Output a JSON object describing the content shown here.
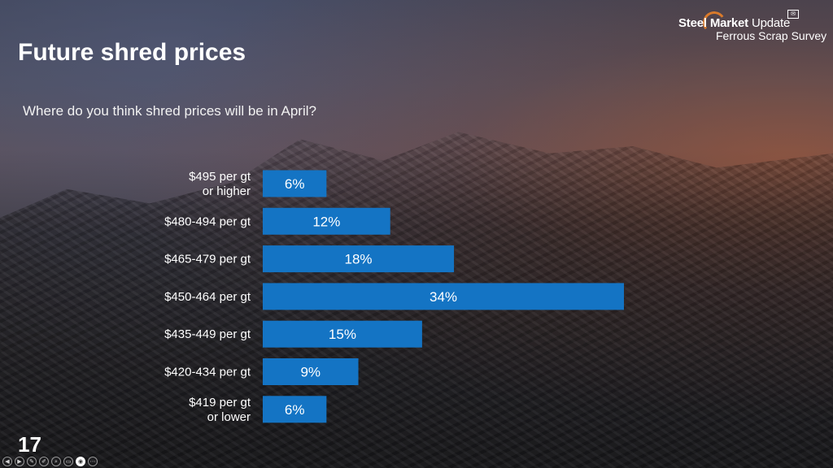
{
  "slide": {
    "title": "Future shred prices",
    "question": "Where do you think shred prices will be in April?",
    "number": "17"
  },
  "logo": {
    "brand_bold": "Steel Market",
    "brand_light": "Update",
    "subtitle": "Ferrous Scrap Survey",
    "badge": "✉"
  },
  "colors": {
    "bar": "#1474c4",
    "accent": "#d97a2b"
  },
  "controls": [
    {
      "name": "prev-icon",
      "glyph": "◀"
    },
    {
      "name": "next-icon",
      "glyph": "▶"
    },
    {
      "name": "pen-icon",
      "glyph": "✎"
    },
    {
      "name": "highlighter-icon",
      "glyph": "✐"
    },
    {
      "name": "zoom-icon",
      "glyph": "⌕"
    },
    {
      "name": "subtitles-icon",
      "glyph": "▭"
    },
    {
      "name": "view-icon",
      "glyph": "◉"
    },
    {
      "name": "more-icon",
      "glyph": "⋯"
    }
  ],
  "chart_data": {
    "type": "bar",
    "orientation": "horizontal",
    "categories": [
      "$495 per gt\nor higher",
      "$480-494 per gt",
      "$465-479 per gt",
      "$450-464 per gt",
      "$435-449 per gt",
      "$420-434 per gt",
      "$419 per gt\nor lower"
    ],
    "values": [
      6,
      12,
      18,
      34,
      15,
      9,
      6
    ],
    "data_labels": [
      "6%",
      "12%",
      "18%",
      "34%",
      "15%",
      "9%",
      "6%"
    ],
    "unit": "%",
    "xlim": [
      0,
      34
    ],
    "grid": false,
    "legend": "none"
  }
}
